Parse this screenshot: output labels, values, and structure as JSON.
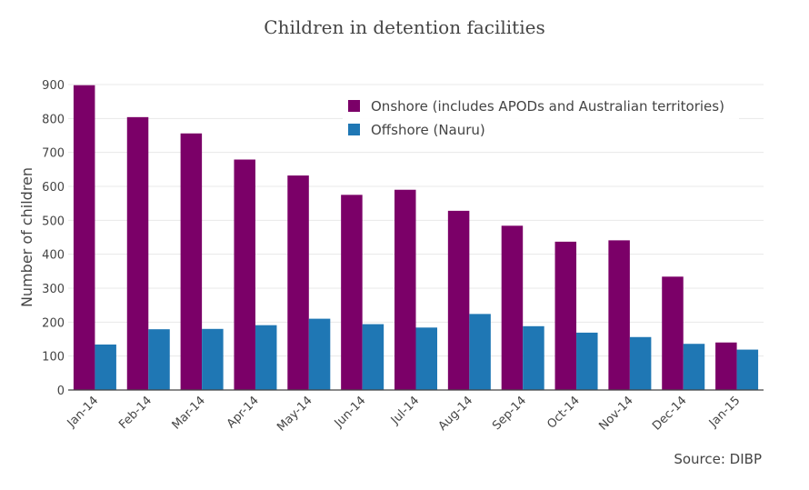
{
  "chart_data": {
    "type": "bar",
    "title": "Children in detention facilities",
    "xlabel": "",
    "ylabel": "Number of children",
    "source": "Source: DIBP",
    "ylim": [
      0,
      900
    ],
    "yticks": [
      0,
      100,
      200,
      300,
      400,
      500,
      600,
      700,
      800,
      900
    ],
    "grid": true,
    "legend_position": "top-right",
    "categories": [
      "Jan-14",
      "Feb-14",
      "Mar-14",
      "Apr-14",
      "May-14",
      "Jun-14",
      "Jul-14",
      "Aug-14",
      "Sep-14",
      "Oct-14",
      "Nov-14",
      "Dec-14",
      "Jan-15"
    ],
    "series": [
      {
        "name": "Onshore (includes APODs and Australian territories)",
        "color": "#7b0068",
        "values": [
          898,
          804,
          756,
          679,
          632,
          575,
          590,
          528,
          484,
          437,
          441,
          334,
          140
        ]
      },
      {
        "name": "Offshore (Nauru)",
        "color": "#1f77b4",
        "values": [
          134,
          179,
          180,
          191,
          210,
          194,
          184,
          224,
          188,
          169,
          156,
          136,
          119
        ]
      }
    ]
  }
}
